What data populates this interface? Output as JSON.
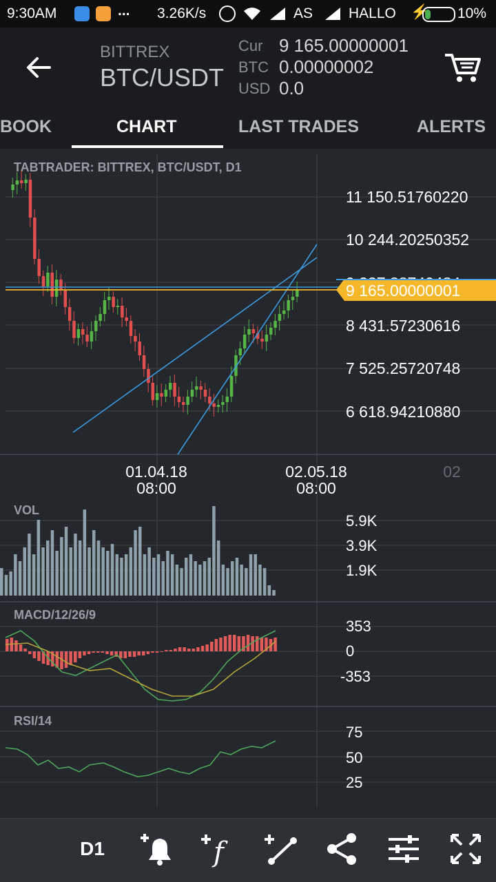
{
  "status": {
    "time": "9:30AM",
    "dots": "...",
    "speed": "3.26K/s",
    "carrier1": "AS",
    "carrier2": "HALLO",
    "battery": "10%"
  },
  "header": {
    "exchange": "BITTREX",
    "pair": "BTC/USDT",
    "cur_label": "Cur",
    "cur_value": "9 165.00000001",
    "btc_label": "BTC",
    "btc_value": "0.00000002",
    "usd_label": "USD",
    "usd_value": "0.0"
  },
  "tabs": [
    "BOOK",
    "CHART",
    "LAST TRADES",
    "ALERTS"
  ],
  "active_tab": "CHART",
  "chart_data": [
    {
      "type": "candlestick",
      "title": "TABTRADER: BITTREX, BTC/USDT, D1",
      "y_ticks": [
        "11 150.51760220",
        "10 244.20250352",
        "8 431.57230616",
        "7 525.25720748",
        "6 618.94210880"
      ],
      "partial_tick": "9 337.88740484",
      "current_price_label": "9 165.00000001",
      "x_ticks": [
        {
          "date": "01.04.18",
          "time": "08:00"
        },
        {
          "date": "02.05.18",
          "time": "08:00"
        },
        {
          "date": "02",
          "time": ""
        }
      ],
      "colors": {
        "up": "#57b548",
        "down": "#e24f4f",
        "trendline": "#3d9be0",
        "price_line": "#f5b82a"
      }
    },
    {
      "type": "bar",
      "title": "VOL",
      "y_ticks": [
        "5.9K",
        "3.9K",
        "1.9K"
      ]
    },
    {
      "type": "bar+line",
      "title": "MACD/12/26/9",
      "y_ticks": [
        "353",
        "0",
        "-353"
      ]
    },
    {
      "type": "line",
      "title": "RSI/14",
      "y_ticks": [
        "75",
        "50",
        "25"
      ]
    }
  ],
  "toolbar": {
    "timeframe": "D1",
    "icons": [
      "add-alert-icon",
      "add-indicator-icon",
      "add-drawing-icon",
      "share-icon",
      "settings-sliders-icon",
      "fullscreen-icon"
    ]
  }
}
